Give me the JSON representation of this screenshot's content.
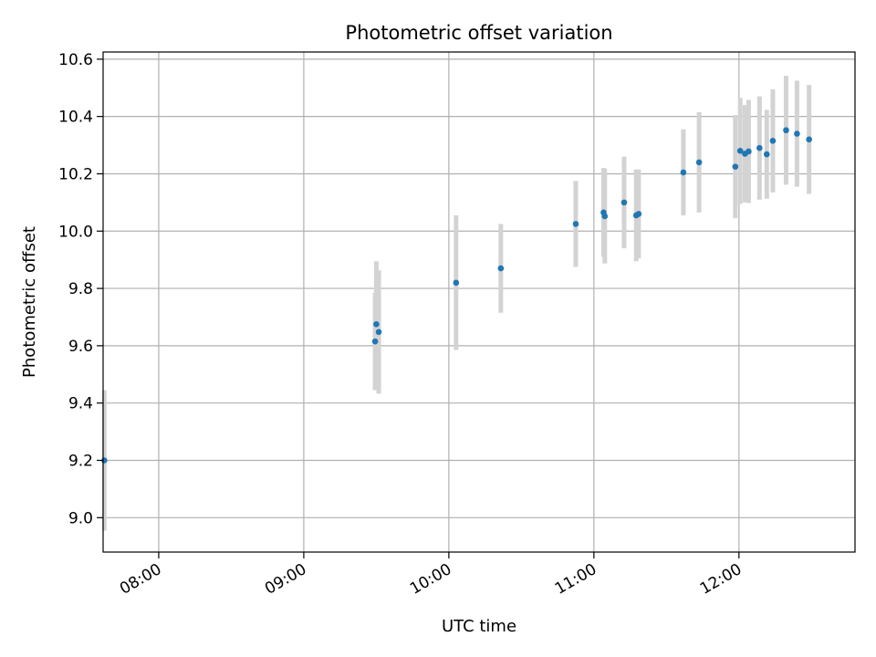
{
  "chart_data": {
    "type": "scatter",
    "title": "Photometric offset variation",
    "xlabel": "UTC time",
    "ylabel": "Photometric offset",
    "x_axis_type": "time",
    "xlim": [
      "07:37",
      "12:48"
    ],
    "ylim": [
      8.88,
      10.625
    ],
    "grid": true,
    "x_ticks": [
      "08:00",
      "09:00",
      "10:00",
      "11:00",
      "12:00"
    ],
    "y_ticks": [
      "9.0",
      "9.2",
      "9.4",
      "9.6",
      "9.8",
      "10.0",
      "10.2",
      "10.4",
      "10.6"
    ],
    "colors": {
      "point": "#1f77b4",
      "error_bar": "#d3d3d3",
      "grid": "#b0b0b0"
    },
    "points": [
      {
        "x": "07:37:30",
        "y": 9.2,
        "err": 0.245
      },
      {
        "x": "09:29:30",
        "y": 9.615,
        "err": 0.17
      },
      {
        "x": "09:30:00",
        "y": 9.675,
        "err": 0.22
      },
      {
        "x": "09:31:00",
        "y": 9.648,
        "err": 0.215
      },
      {
        "x": "10:03:00",
        "y": 9.82,
        "err": 0.235
      },
      {
        "x": "10:21:30",
        "y": 9.87,
        "err": 0.155
      },
      {
        "x": "10:52:30",
        "y": 10.025,
        "err": 0.15
      },
      {
        "x": "11:04:00",
        "y": 10.065,
        "err": 0.155
      },
      {
        "x": "11:04:30",
        "y": 10.052,
        "err": 0.165
      },
      {
        "x": "11:12:30",
        "y": 10.1,
        "err": 0.16
      },
      {
        "x": "11:17:30",
        "y": 10.055,
        "err": 0.16
      },
      {
        "x": "11:18:30",
        "y": 10.06,
        "err": 0.155
      },
      {
        "x": "11:37:00",
        "y": 10.205,
        "err": 0.15
      },
      {
        "x": "11:43:30",
        "y": 10.24,
        "err": 0.175
      },
      {
        "x": "11:58:30",
        "y": 10.225,
        "err": 0.18
      },
      {
        "x": "12:00:30",
        "y": 10.28,
        "err": 0.185
      },
      {
        "x": "12:02:30",
        "y": 10.27,
        "err": 0.17
      },
      {
        "x": "12:04:00",
        "y": 10.278,
        "err": 0.18
      },
      {
        "x": "12:08:30",
        "y": 10.29,
        "err": 0.18
      },
      {
        "x": "12:11:30",
        "y": 10.268,
        "err": 0.155
      },
      {
        "x": "12:14:00",
        "y": 10.315,
        "err": 0.18
      },
      {
        "x": "12:19:30",
        "y": 10.352,
        "err": 0.19
      },
      {
        "x": "12:24:00",
        "y": 10.34,
        "err": 0.185
      },
      {
        "x": "12:29:00",
        "y": 10.32,
        "err": 0.19
      }
    ]
  }
}
